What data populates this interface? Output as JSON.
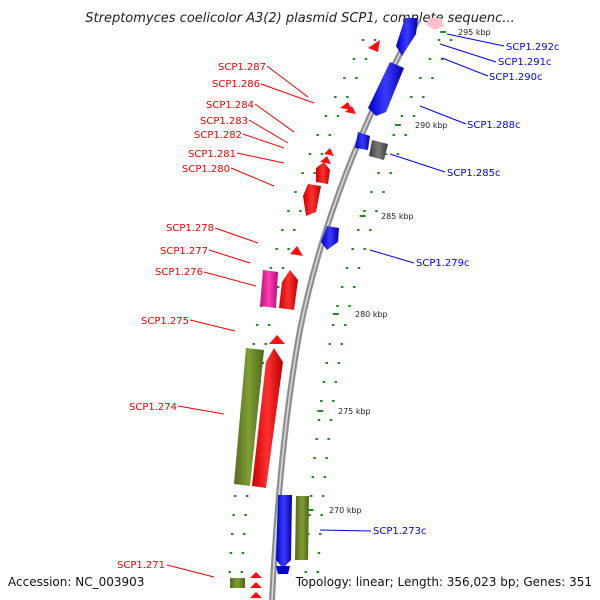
{
  "title": "Streptomyces coelicolor A3(2) plasmid SCP1, complete sequenc...",
  "footer": {
    "accession": "Accession: NC_003903",
    "summary": "Topology: linear; Length: 356,023 bp; Genes: 351"
  },
  "colors": {
    "backbone": "#8a8a8a",
    "forward_gene": "#ff0000",
    "reverse_gene": "#0000ee",
    "olive_feature": "#6b8e23",
    "magenta_feature": "#e6179b",
    "gray_feature": "#555555",
    "pink_feature": "#ffc0cb",
    "tick": "#228b22"
  },
  "scale_ticks": [
    {
      "label": "295 kbp"
    },
    {
      "label": "290 kbp"
    },
    {
      "label": "285 kbp"
    },
    {
      "label": "280 kbp"
    },
    {
      "label": "275 kbp"
    },
    {
      "label": "270 kbp"
    }
  ],
  "left_labels": [
    {
      "text": "SCP1.287"
    },
    {
      "text": "SCP1.286"
    },
    {
      "text": "SCP1.284"
    },
    {
      "text": "SCP1.283"
    },
    {
      "text": "SCP1.282"
    },
    {
      "text": "SCP1.281"
    },
    {
      "text": "SCP1.280"
    },
    {
      "text": "SCP1.278"
    },
    {
      "text": "SCP1.277"
    },
    {
      "text": "SCP1.276"
    },
    {
      "text": "SCP1.275"
    },
    {
      "text": "SCP1.274"
    },
    {
      "text": "SCP1.271"
    }
  ],
  "right_labels": [
    {
      "text": "SCP1.292c"
    },
    {
      "text": "SCP1.291c"
    },
    {
      "text": "SCP1.290c"
    },
    {
      "text": "SCP1.288c"
    },
    {
      "text": "SCP1.285c"
    },
    {
      "text": "SCP1.279c"
    },
    {
      "text": "SCP1.273c"
    }
  ]
}
